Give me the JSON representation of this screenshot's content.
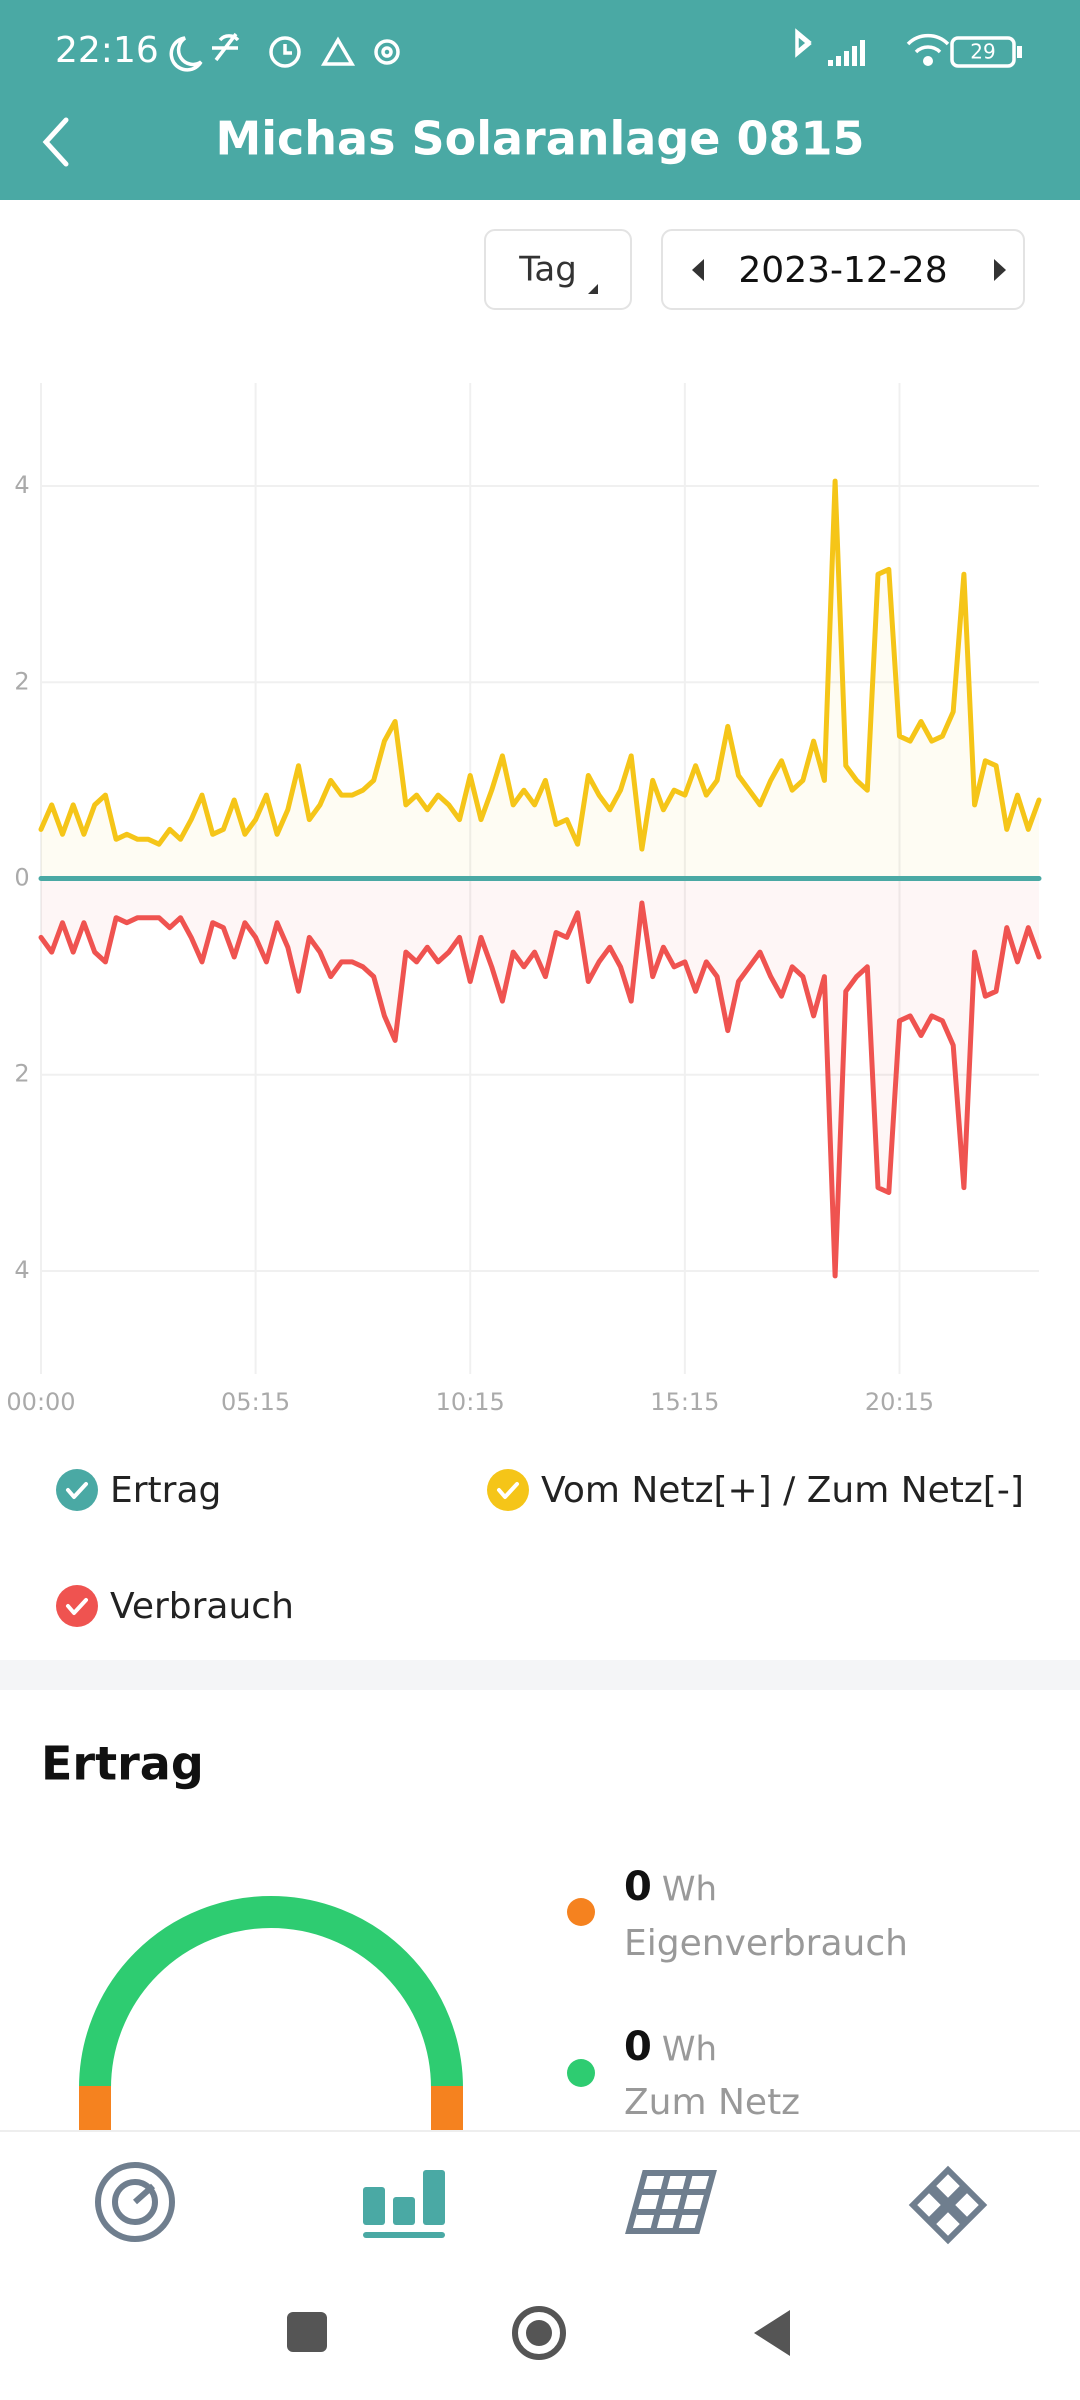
{
  "status_bar": {
    "time": "22:16",
    "battery": "29"
  },
  "header": {
    "title": "Michas Solaranlage 0815"
  },
  "controls": {
    "period": "Tag",
    "date": "2023-12-28"
  },
  "chart_data": {
    "type": "line",
    "x": [
      "00:00",
      null,
      null,
      null,
      null,
      null,
      null,
      null,
      null,
      null,
      null,
      null,
      null,
      null,
      null,
      null,
      null,
      null,
      null,
      null,
      "05:15",
      null,
      null,
      null,
      null,
      null,
      null,
      null,
      null,
      null,
      null,
      null,
      null,
      null,
      null,
      null,
      null,
      null,
      null,
      null,
      "10:15",
      null,
      null,
      null,
      null,
      null,
      null,
      null,
      null,
      null,
      null,
      null,
      null,
      null,
      null,
      null,
      null,
      null,
      null,
      null,
      "15:15",
      null,
      null,
      null,
      null,
      null,
      null,
      null,
      null,
      null,
      null,
      null,
      null,
      null,
      null,
      null,
      null,
      null,
      null,
      null,
      "20:15",
      null,
      null,
      null,
      null,
      null,
      null,
      null,
      null,
      null,
      null,
      null,
      null,
      null
    ],
    "series": [
      {
        "name": "Ertrag",
        "color": "#4aa9a4",
        "values": [
          0,
          0,
          0,
          0,
          0,
          0,
          0,
          0,
          0,
          0,
          0,
          0,
          0,
          0,
          0,
          0,
          0,
          0,
          0,
          0,
          0,
          0,
          0,
          0,
          0,
          0,
          0,
          0,
          0,
          0,
          0,
          0,
          0,
          0,
          0,
          0,
          0,
          0,
          0,
          0,
          0,
          0,
          0,
          0,
          0,
          0,
          0,
          0,
          0,
          0,
          0,
          0,
          0,
          0,
          0,
          0,
          0,
          0,
          0,
          0,
          0,
          0,
          0,
          0,
          0,
          0,
          0,
          0,
          0,
          0,
          0,
          0,
          0,
          0,
          0,
          0,
          0,
          0,
          0,
          0,
          0,
          0,
          0,
          0,
          0,
          0,
          0,
          0,
          0,
          0,
          0,
          0,
          0,
          0
        ]
      },
      {
        "name": "Vom Netz[+] / Zum Netz[-]",
        "color": "#f5c518",
        "values": [
          0.5,
          0.75,
          0.45,
          0.75,
          0.45,
          0.75,
          0.85,
          0.4,
          0.45,
          0.4,
          0.4,
          0.35,
          0.5,
          0.4,
          0.6,
          0.85,
          0.45,
          0.5,
          0.8,
          0.45,
          0.6,
          0.85,
          0.45,
          0.7,
          1.15,
          0.6,
          0.75,
          1.0,
          0.85,
          0.85,
          0.9,
          1.0,
          1.4,
          1.6,
          0.75,
          0.85,
          0.7,
          0.85,
          0.75,
          0.6,
          1.05,
          0.6,
          0.9,
          1.25,
          0.75,
          0.9,
          0.75,
          1.0,
          0.55,
          0.6,
          0.35,
          1.05,
          0.85,
          0.7,
          0.9,
          1.25,
          0.3,
          1.0,
          0.7,
          0.9,
          0.85,
          1.15,
          0.85,
          1.0,
          1.55,
          1.05,
          0.9,
          0.75,
          1.0,
          1.2,
          0.9,
          1.0,
          1.4,
          1.0,
          4.05,
          1.15,
          1.0,
          0.9,
          3.1,
          3.15,
          1.45,
          1.4,
          1.6,
          1.4,
          1.45,
          1.7,
          3.1,
          0.75,
          1.2,
          1.15,
          0.5,
          0.85,
          0.5,
          0.8
        ]
      },
      {
        "name": "Verbrauch",
        "color": "#ef5350",
        "values": [
          -0.6,
          -0.75,
          -0.45,
          -0.75,
          -0.45,
          -0.75,
          -0.85,
          -0.4,
          -0.45,
          -0.4,
          -0.4,
          -0.4,
          -0.5,
          -0.4,
          -0.6,
          -0.85,
          -0.45,
          -0.5,
          -0.8,
          -0.45,
          -0.6,
          -0.85,
          -0.45,
          -0.7,
          -1.15,
          -0.6,
          -0.75,
          -1.0,
          -0.85,
          -0.85,
          -0.9,
          -1.0,
          -1.4,
          -1.65,
          -0.75,
          -0.85,
          -0.7,
          -0.85,
          -0.75,
          -0.6,
          -1.05,
          -0.6,
          -0.9,
          -1.25,
          -0.75,
          -0.9,
          -0.75,
          -1.0,
          -0.55,
          -0.6,
          -0.35,
          -1.05,
          -0.85,
          -0.7,
          -0.9,
          -1.25,
          -0.25,
          -1.0,
          -0.7,
          -0.9,
          -0.85,
          -1.15,
          -0.85,
          -1.0,
          -1.55,
          -1.05,
          -0.9,
          -0.75,
          -1.0,
          -1.2,
          -0.9,
          -1.0,
          -1.4,
          -1.0,
          -4.05,
          -1.15,
          -1.0,
          -0.9,
          -3.15,
          -3.2,
          -1.45,
          -1.4,
          -1.6,
          -1.4,
          -1.45,
          -1.7,
          -3.15,
          -0.75,
          -1.2,
          -1.15,
          -0.5,
          -0.85,
          -0.5,
          -0.8
        ]
      }
    ],
    "ylim": [
      -5.05,
      5.05
    ],
    "yticks": [
      {
        "value": -4,
        "label": "4"
      },
      {
        "value": -2,
        "label": "2"
      },
      0,
      2,
      4
    ],
    "grid": true,
    "area": true,
    "legend": "bottom"
  },
  "summary": {
    "title": "Ertrag",
    "items": [
      {
        "value": 0,
        "unit": "Wh",
        "label": "Eigenverbrauch",
        "color": "#f5821f"
      },
      {
        "value": 0,
        "unit": "Wh",
        "label": "Zum Netz",
        "color": "#2ecc71"
      }
    ]
  }
}
